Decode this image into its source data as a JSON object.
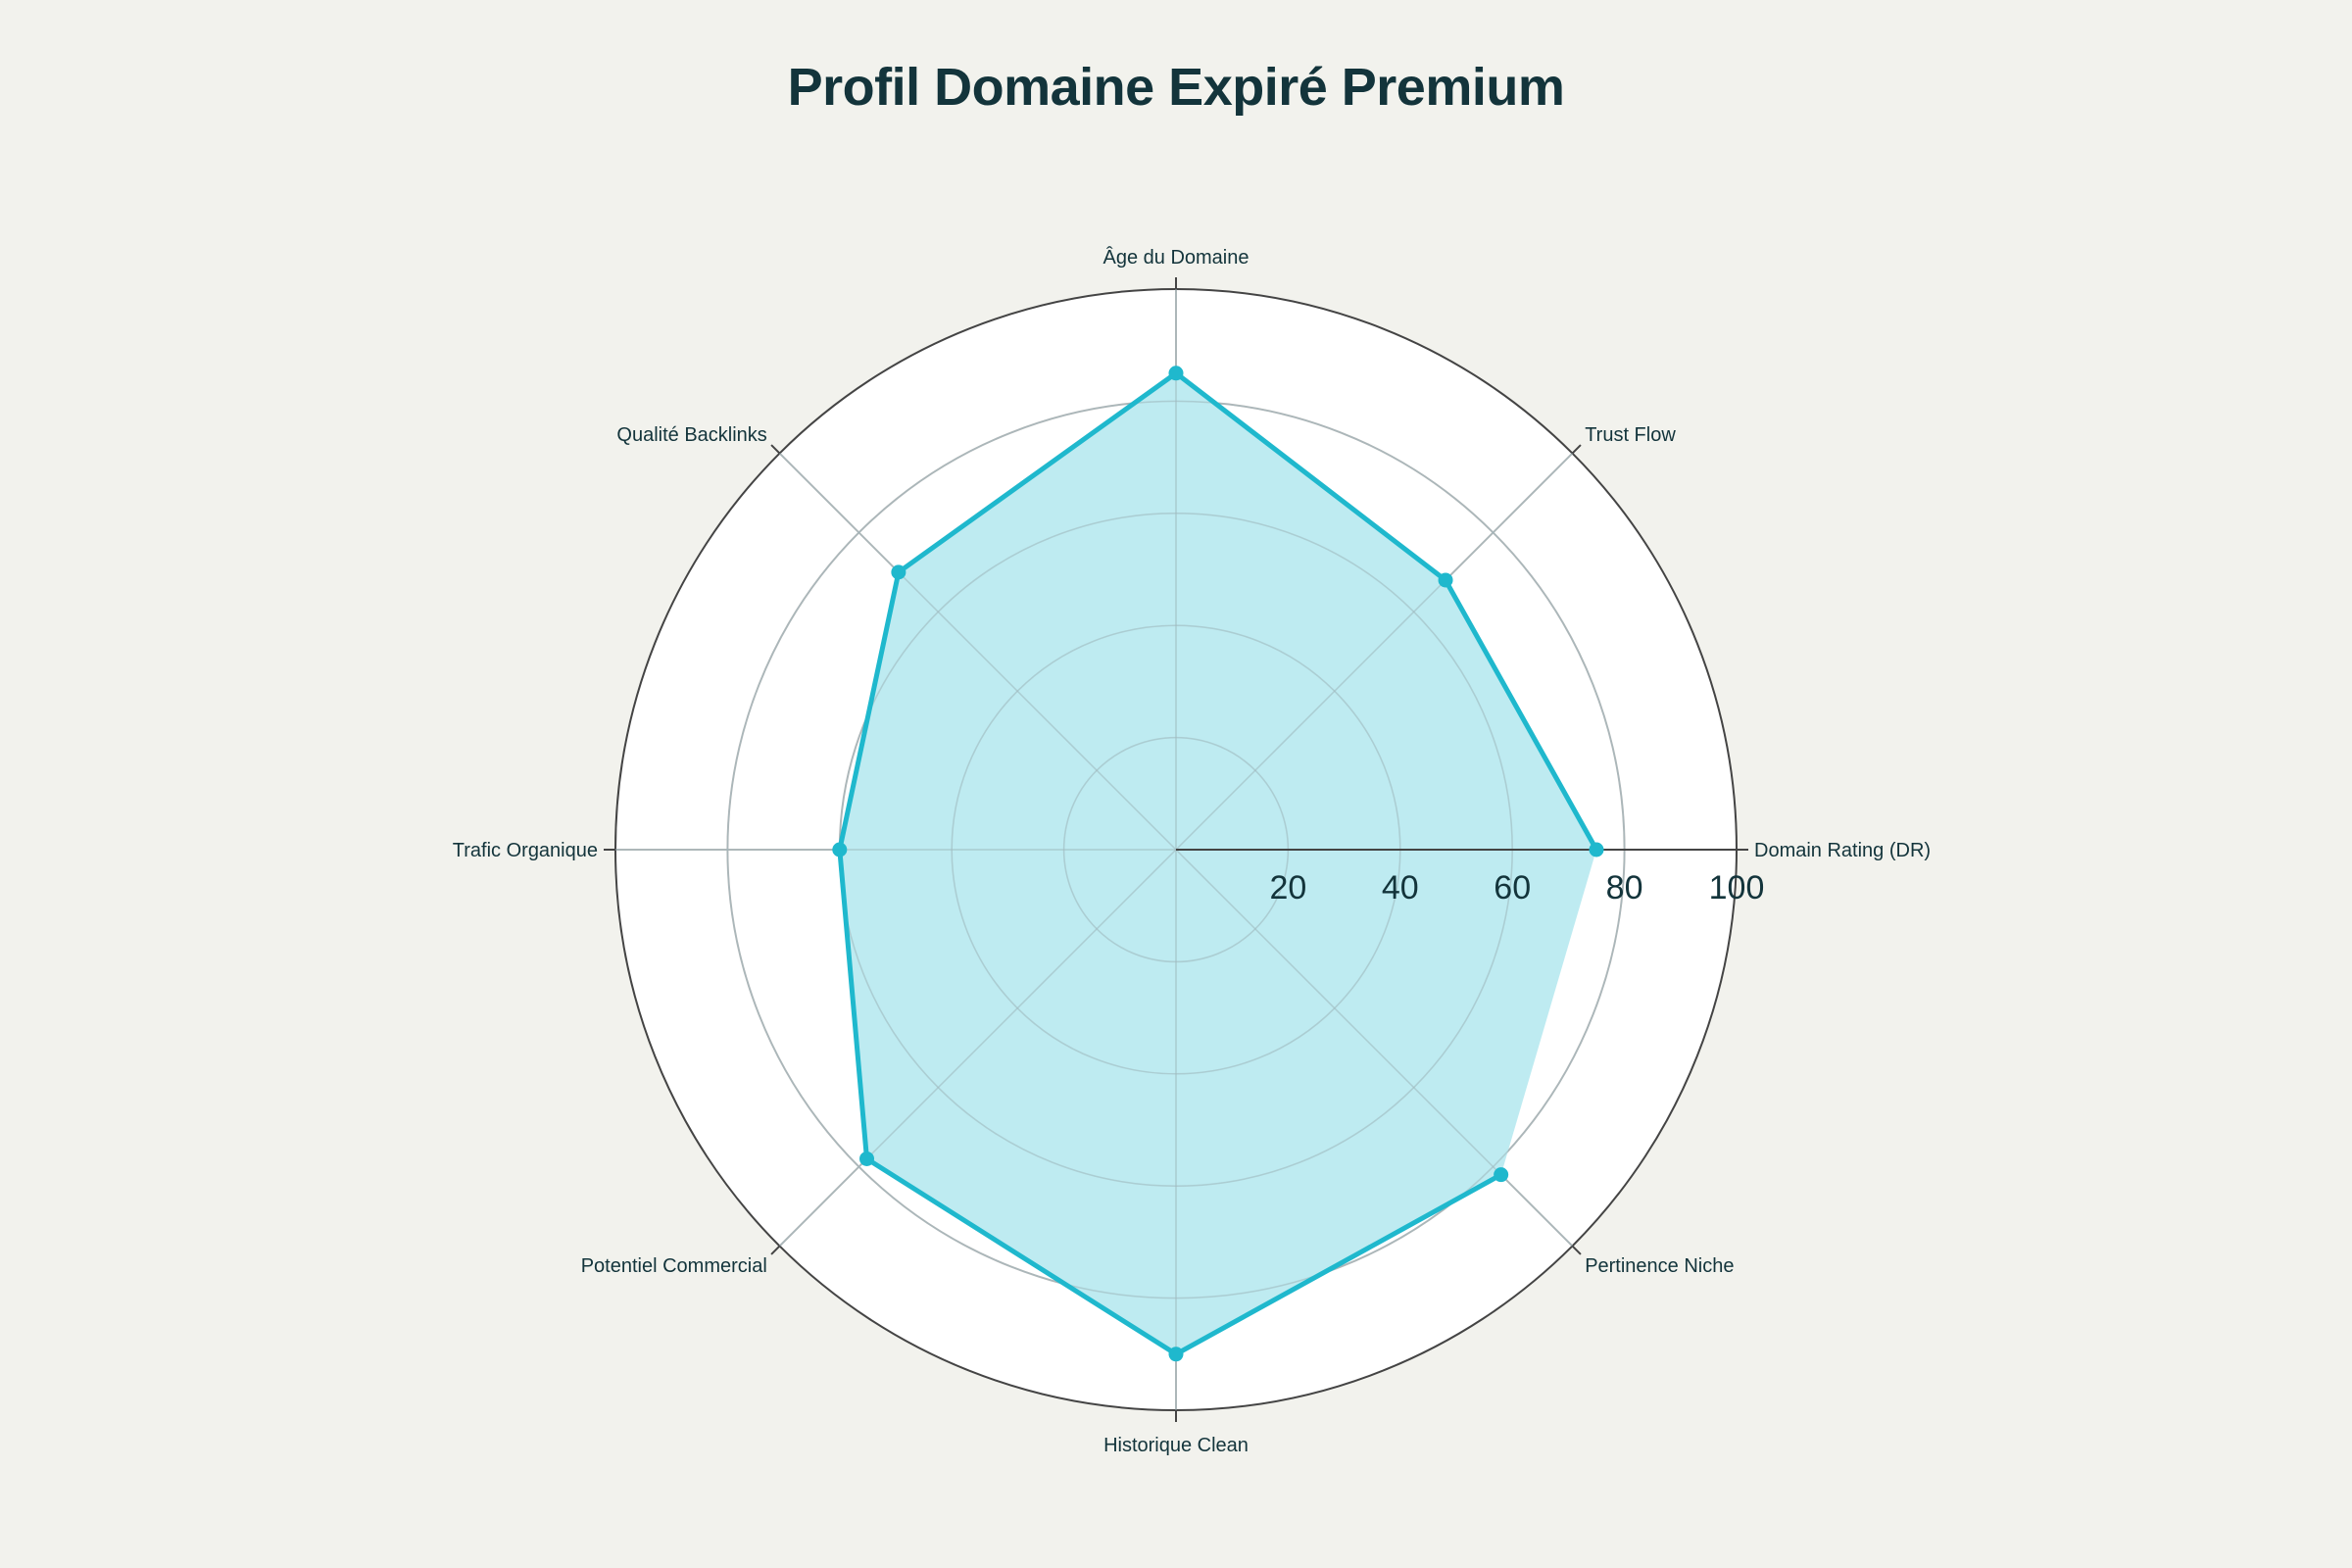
{
  "chart_data": {
    "type": "radar",
    "title": "Profil Domaine Expiré Premium",
    "categories": [
      "Domain Rating (DR)",
      "Trust Flow",
      "Âge du Domaine",
      "Qualité Backlinks",
      "Trafic Organique",
      "Potentiel Commercial",
      "Historique Clean",
      "Pertinence Niche"
    ],
    "series": [
      {
        "values": [
          75,
          68,
          85,
          70,
          60,
          78,
          90,
          82
        ],
        "color": "#1fb8cd",
        "fill": "#bbeaf0"
      }
    ],
    "radial_range": [
      0,
      100
    ],
    "radial_ticks": [
      "20",
      "40",
      "60",
      "80",
      "100"
    ],
    "grid": true,
    "background": "#f2f2ed",
    "plot_background": "#ffffff"
  }
}
